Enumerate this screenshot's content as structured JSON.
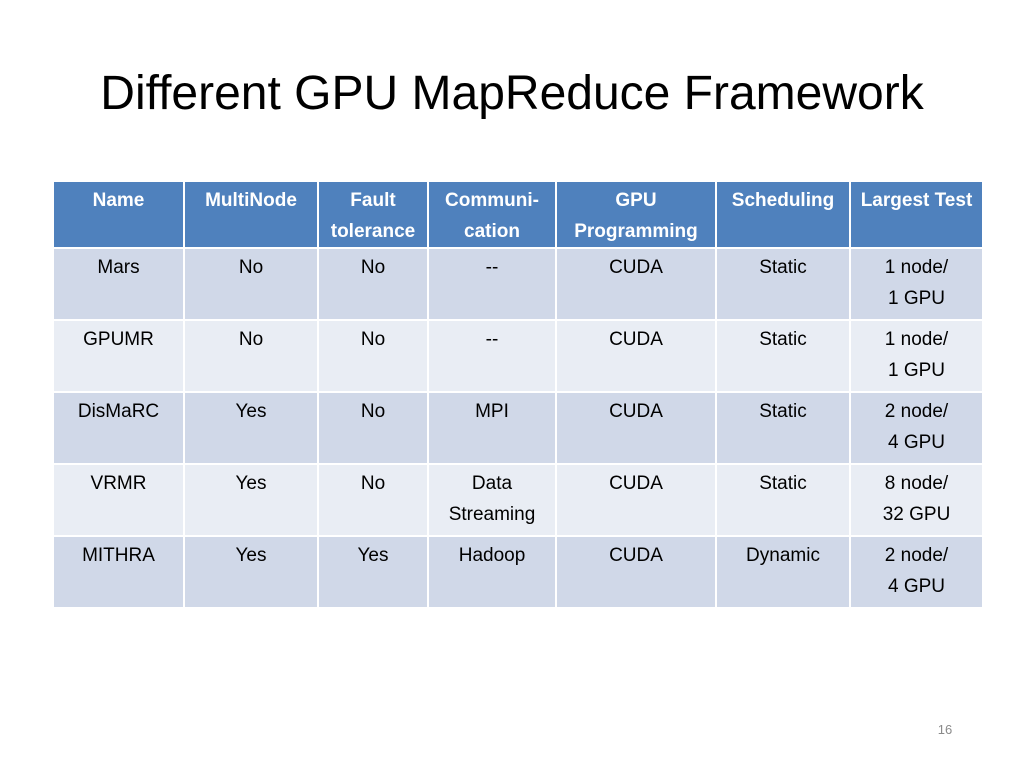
{
  "slide": {
    "title": "Different GPU MapReduce Framework",
    "page_number": "16"
  },
  "table": {
    "headers": [
      [
        "Name"
      ],
      [
        "MultiNode"
      ],
      [
        "Fault",
        "tolerance"
      ],
      [
        "Communi-",
        "cation"
      ],
      [
        "GPU",
        "Programming"
      ],
      [
        "Scheduling"
      ],
      [
        "Largest Test"
      ]
    ],
    "rows": [
      [
        [
          "Mars"
        ],
        [
          "No"
        ],
        [
          "No"
        ],
        [
          "--"
        ],
        [
          "CUDA"
        ],
        [
          "Static"
        ],
        [
          "1 node/",
          "1 GPU"
        ]
      ],
      [
        [
          "GPUMR"
        ],
        [
          "No"
        ],
        [
          "No"
        ],
        [
          "--"
        ],
        [
          "CUDA"
        ],
        [
          "Static"
        ],
        [
          "1 node/",
          "1 GPU"
        ]
      ],
      [
        [
          "DisMaRC"
        ],
        [
          "Yes"
        ],
        [
          "No"
        ],
        [
          "MPI"
        ],
        [
          "CUDA"
        ],
        [
          "Static"
        ],
        [
          "2 node/",
          "4 GPU"
        ]
      ],
      [
        [
          "VRMR"
        ],
        [
          "Yes"
        ],
        [
          "No"
        ],
        [
          "Data",
          "Streaming"
        ],
        [
          "CUDA"
        ],
        [
          "Static"
        ],
        [
          "8 node/",
          "32 GPU"
        ]
      ],
      [
        [
          "MITHRA"
        ],
        [
          "Yes"
        ],
        [
          "Yes"
        ],
        [
          "Hadoop"
        ],
        [
          "CUDA"
        ],
        [
          "Dynamic"
        ],
        [
          "2 node/",
          "4 GPU"
        ]
      ]
    ]
  },
  "colors": {
    "header_bg": "#4f81bd",
    "row_dark": "#d0d8e8",
    "row_light": "#e9edf4"
  }
}
